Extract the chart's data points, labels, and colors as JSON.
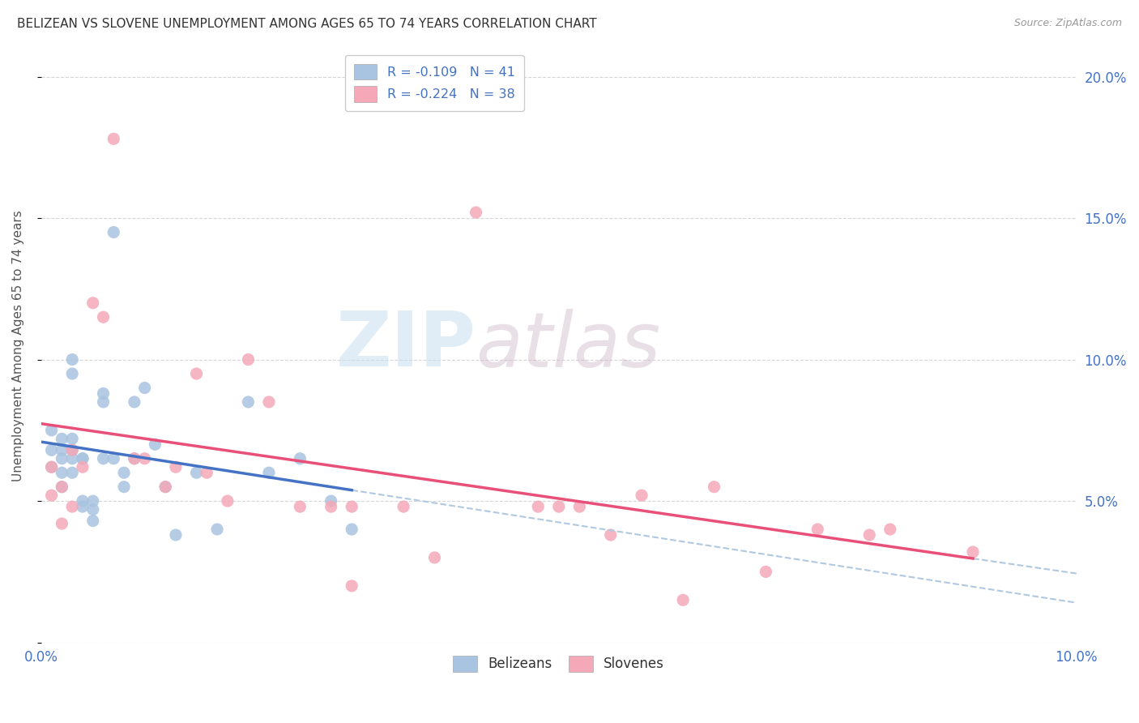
{
  "title": "BELIZEAN VS SLOVENE UNEMPLOYMENT AMONG AGES 65 TO 74 YEARS CORRELATION CHART",
  "source": "Source: ZipAtlas.com",
  "ylabel": "Unemployment Among Ages 65 to 74 years",
  "y_ticks": [
    0.0,
    0.05,
    0.1,
    0.15,
    0.2
  ],
  "y_tick_labels": [
    "",
    "5.0%",
    "10.0%",
    "15.0%",
    "20.0%"
  ],
  "x_ticks": [
    0.0,
    0.02,
    0.04,
    0.06,
    0.08,
    0.1
  ],
  "x_tick_labels": [
    "0.0%",
    "",
    "",
    "",
    "",
    "10.0%"
  ],
  "xlim": [
    0.0,
    0.1
  ],
  "ylim": [
    0.0,
    0.21
  ],
  "belizean_color": "#a8c4e0",
  "slovene_color": "#f4a8b8",
  "belizean_line_color": "#4472c4",
  "slovene_line_color": "#e8507a",
  "dashed_color": "#b0c8e0",
  "text_color": "#4472c4",
  "belizean_x": [
    0.001,
    0.001,
    0.001,
    0.002,
    0.002,
    0.002,
    0.002,
    0.002,
    0.003,
    0.003,
    0.003,
    0.003,
    0.003,
    0.003,
    0.004,
    0.004,
    0.004,
    0.004,
    0.005,
    0.005,
    0.005,
    0.006,
    0.006,
    0.006,
    0.007,
    0.007,
    0.008,
    0.008,
    0.009,
    0.009,
    0.01,
    0.011,
    0.012,
    0.013,
    0.015,
    0.017,
    0.02,
    0.022,
    0.025,
    0.028,
    0.03
  ],
  "belizean_y": [
    0.068,
    0.062,
    0.075,
    0.072,
    0.068,
    0.065,
    0.06,
    0.055,
    0.1,
    0.095,
    0.072,
    0.068,
    0.065,
    0.06,
    0.065,
    0.065,
    0.05,
    0.048,
    0.05,
    0.047,
    0.043,
    0.088,
    0.085,
    0.065,
    0.145,
    0.065,
    0.06,
    0.055,
    0.085,
    0.065,
    0.09,
    0.07,
    0.055,
    0.038,
    0.06,
    0.04,
    0.085,
    0.06,
    0.065,
    0.05,
    0.04
  ],
  "slovene_x": [
    0.001,
    0.001,
    0.002,
    0.002,
    0.003,
    0.003,
    0.004,
    0.005,
    0.006,
    0.007,
    0.009,
    0.01,
    0.012,
    0.013,
    0.015,
    0.016,
    0.018,
    0.02,
    0.022,
    0.025,
    0.028,
    0.03,
    0.035,
    0.038,
    0.042,
    0.048,
    0.052,
    0.055,
    0.058,
    0.062,
    0.07,
    0.075,
    0.082,
    0.09,
    0.03,
    0.05,
    0.065,
    0.08
  ],
  "slovene_y": [
    0.062,
    0.052,
    0.055,
    0.042,
    0.048,
    0.068,
    0.062,
    0.12,
    0.115,
    0.178,
    0.065,
    0.065,
    0.055,
    0.062,
    0.095,
    0.06,
    0.05,
    0.1,
    0.085,
    0.048,
    0.048,
    0.02,
    0.048,
    0.03,
    0.152,
    0.048,
    0.048,
    0.038,
    0.052,
    0.015,
    0.025,
    0.04,
    0.04,
    0.032,
    0.048,
    0.048,
    0.055,
    0.038
  ],
  "watermark_zip": "ZIP",
  "watermark_atlas": "atlas",
  "background_color": "#ffffff"
}
